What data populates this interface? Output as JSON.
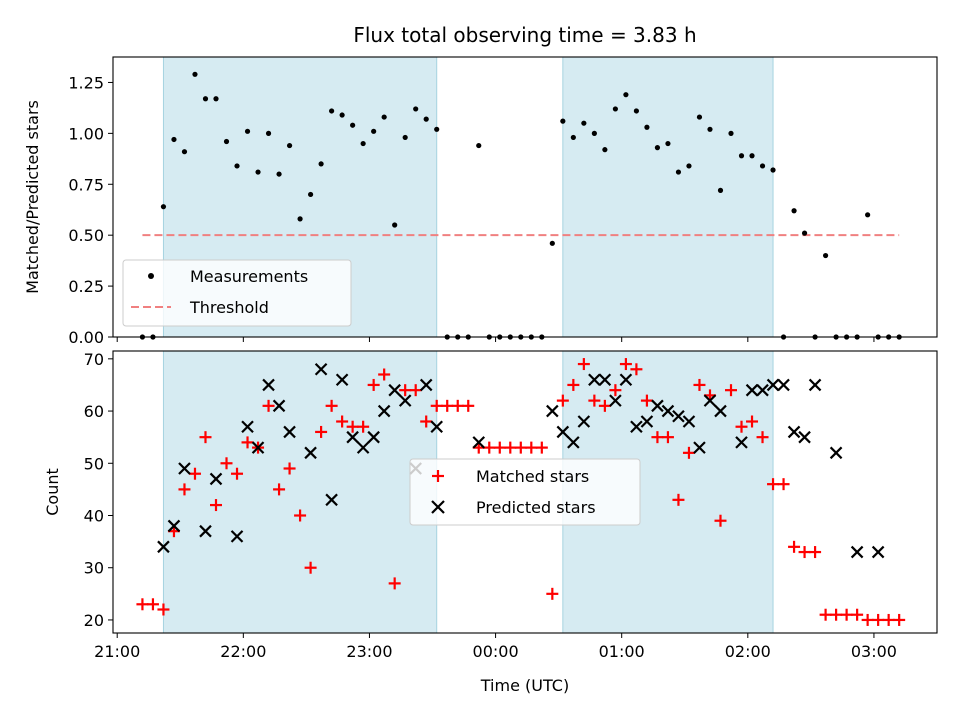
{
  "chart_data": [
    {
      "type": "scatter",
      "title": "Flux total observing time = 3.83 h",
      "xlabel": "",
      "ylabel": "Matched/Predicted stars",
      "ylim": [
        0,
        1.375
      ],
      "yticks": [
        "0.00",
        "0.25",
        "0.50",
        "0.75",
        "1.00",
        "1.25"
      ],
      "ytick_values": [
        0,
        0.25,
        0.5,
        0.75,
        1.0,
        1.25
      ],
      "legend_position": "lower-left",
      "shaded_intervals": [
        [
          "21:22",
          "23:32"
        ],
        [
          "00:32",
          "02:12"
        ]
      ],
      "threshold": {
        "name": "Threshold",
        "value": 0.5,
        "x_range": [
          "21:12",
          "03:12"
        ],
        "color": "#f08080"
      },
      "series": [
        {
          "name": "Measurements",
          "color": "#000000",
          "x": [
            "21:12",
            "21:17",
            "21:22",
            "21:27",
            "21:32",
            "21:37",
            "21:42",
            "21:47",
            "21:52",
            "21:57",
            "22:02",
            "22:07",
            "22:12",
            "22:17",
            "22:22",
            "22:27",
            "22:32",
            "22:37",
            "22:42",
            "22:47",
            "22:52",
            "22:57",
            "23:02",
            "23:07",
            "23:12",
            "23:17",
            "23:22",
            "23:27",
            "23:32",
            "23:37",
            "23:42",
            "23:47",
            "23:52",
            "23:57",
            "00:02",
            "00:07",
            "00:12",
            "00:17",
            "00:22",
            "00:27",
            "00:32",
            "00:37",
            "00:42",
            "00:47",
            "00:52",
            "00:57",
            "01:02",
            "01:07",
            "01:12",
            "01:17",
            "01:22",
            "01:27",
            "01:32",
            "01:37",
            "01:42",
            "01:47",
            "01:52",
            "01:57",
            "02:02",
            "02:07",
            "02:12",
            "02:17",
            "02:22",
            "02:27",
            "02:32",
            "02:37",
            "02:42",
            "02:47",
            "02:52",
            "02:57",
            "03:02",
            "03:07",
            "03:12"
          ],
          "values": [
            0,
            0,
            0.64,
            0.97,
            0.91,
            1.29,
            1.17,
            1.17,
            0.96,
            0.84,
            1.01,
            0.81,
            1.0,
            0.8,
            0.94,
            0.58,
            0.7,
            0.85,
            1.11,
            1.09,
            1.04,
            0.95,
            1.01,
            1.08,
            0.55,
            0.98,
            1.12,
            1.07,
            1.02,
            0,
            0,
            0,
            0.94,
            0,
            0,
            0,
            0,
            0,
            0,
            0.46,
            1.06,
            0.98,
            1.05,
            1.0,
            0.92,
            1.12,
            1.19,
            1.11,
            1.03,
            0.93,
            0.95,
            0.81,
            0.84,
            1.08,
            1.02,
            0.72,
            1.0,
            0.89,
            0.89,
            0.84,
            0.82,
            0,
            0.62,
            0.51,
            0,
            0.4,
            0,
            0,
            0,
            0.6,
            0,
            0,
            0
          ]
        }
      ]
    },
    {
      "type": "scatter",
      "xlabel": "Time (UTC)",
      "ylabel": "Count",
      "ylim": [
        17.5,
        71.5
      ],
      "yticks": [
        "20",
        "30",
        "40",
        "50",
        "60",
        "70"
      ],
      "ytick_values": [
        20,
        30,
        40,
        50,
        60,
        70
      ],
      "xticks": [
        "21:00",
        "22:00",
        "23:00",
        "00:00",
        "01:00",
        "02:00",
        "03:00"
      ],
      "xlim": [
        "20:58",
        "03:30"
      ],
      "legend_position": "center",
      "shaded_intervals": [
        [
          "21:22",
          "23:32"
        ],
        [
          "00:32",
          "02:12"
        ]
      ],
      "series": [
        {
          "name": "Matched stars",
          "marker": "+",
          "color": "#ff0000",
          "x": [
            "21:12",
            "21:17",
            "21:22",
            "21:27",
            "21:32",
            "21:37",
            "21:42",
            "21:47",
            "21:52",
            "21:57",
            "22:02",
            "22:07",
            "22:12",
            "22:17",
            "22:22",
            "22:27",
            "22:32",
            "22:37",
            "22:42",
            "22:47",
            "22:52",
            "22:57",
            "23:02",
            "23:07",
            "23:12",
            "23:17",
            "23:22",
            "23:27",
            "23:32",
            "23:37",
            "23:42",
            "23:47",
            "23:52",
            "23:57",
            "00:02",
            "00:07",
            "00:12",
            "00:17",
            "00:22",
            "00:27",
            "00:32",
            "00:37",
            "00:42",
            "00:47",
            "00:52",
            "00:57",
            "01:02",
            "01:07",
            "01:12",
            "01:17",
            "01:22",
            "01:27",
            "01:32",
            "01:37",
            "01:42",
            "01:47",
            "01:52",
            "01:57",
            "02:02",
            "02:07",
            "02:12",
            "02:17",
            "02:22",
            "02:27",
            "02:32",
            "02:37",
            "02:42",
            "02:47",
            "02:52",
            "02:57",
            "03:02",
            "03:07",
            "03:12"
          ],
          "values": [
            23,
            23,
            22,
            37,
            45,
            48,
            55,
            42,
            50,
            48,
            54,
            53,
            61,
            45,
            49,
            40,
            30,
            56,
            61,
            58,
            57,
            57,
            65,
            67,
            27,
            64,
            64,
            58,
            61,
            61,
            61,
            61,
            53,
            53,
            53,
            53,
            53,
            53,
            53,
            25,
            62,
            65,
            69,
            62,
            61,
            64,
            69,
            68,
            62,
            55,
            55,
            43,
            52,
            65,
            63,
            39,
            64,
            57,
            58,
            55,
            46,
            46,
            34,
            33,
            33,
            21,
            21,
            21,
            21,
            20,
            20,
            20,
            20
          ]
        },
        {
          "name": "Predicted stars",
          "marker": "x",
          "color": "#000000",
          "x": [
            "21:22",
            "21:27",
            "21:32",
            "21:42",
            "21:47",
            "21:57",
            "22:02",
            "22:07",
            "22:12",
            "22:17",
            "22:22",
            "22:32",
            "22:37",
            "22:42",
            "22:47",
            "22:52",
            "22:57",
            "23:02",
            "23:07",
            "23:12",
            "23:17",
            "23:22",
            "23:27",
            "23:32",
            "23:52",
            "00:27",
            "00:32",
            "00:37",
            "00:42",
            "00:47",
            "00:52",
            "00:57",
            "01:02",
            "01:07",
            "01:12",
            "01:17",
            "01:22",
            "01:27",
            "01:32",
            "01:37",
            "01:42",
            "01:47",
            "01:57",
            "02:02",
            "02:07",
            "02:12",
            "02:17",
            "02:22",
            "02:27",
            "02:32",
            "02:42",
            "02:52",
            "03:02"
          ],
          "values": [
            34,
            38,
            49,
            37,
            47,
            36,
            57,
            53,
            65,
            61,
            56,
            52,
            68,
            43,
            66,
            55,
            53,
            55,
            60,
            64,
            62,
            49,
            65,
            57,
            54,
            60,
            56,
            54,
            58,
            66,
            66,
            62,
            66,
            57,
            58,
            61,
            60,
            59,
            58,
            53,
            62,
            60,
            54,
            64,
            64,
            65,
            65,
            56,
            55,
            65,
            52,
            33,
            33
          ]
        }
      ]
    }
  ]
}
